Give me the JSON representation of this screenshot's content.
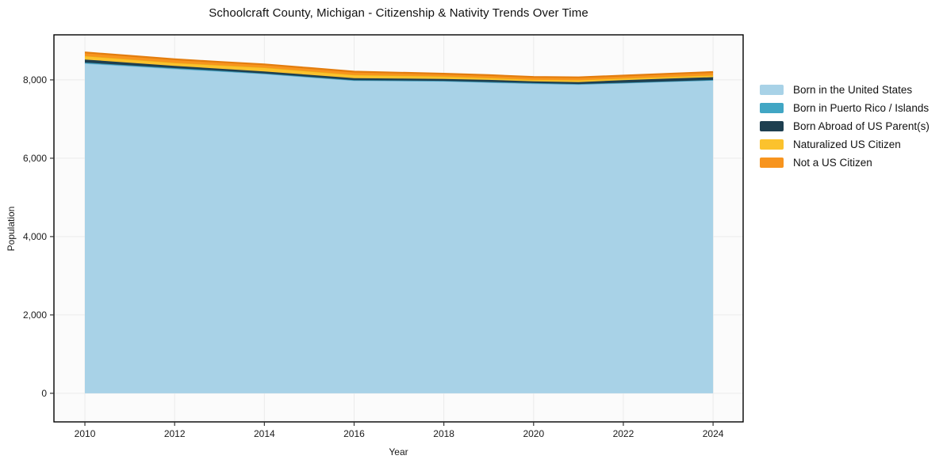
{
  "title": "Schoolcraft County, Michigan - Citizenship & Nativity Trends Over Time",
  "chart_data": {
    "type": "area",
    "stacked": true,
    "title": "Schoolcraft County, Michigan - Citizenship & Nativity Trends Over Time",
    "xlabel": "Year",
    "ylabel": "Population",
    "grid": true,
    "legend_position": "right-outside",
    "xlim": [
      2009.31,
      2024.67
    ],
    "ylim": [
      -730,
      9150
    ],
    "x": [
      2010,
      2011,
      2012,
      2013,
      2014,
      2015,
      2016,
      2017,
      2018,
      2019,
      2020,
      2021,
      2022,
      2023,
      2024
    ],
    "x_ticks": [
      {
        "value": 2010,
        "label": "2010"
      },
      {
        "value": 2012,
        "label": "2012"
      },
      {
        "value": 2014,
        "label": "2014"
      },
      {
        "value": 2016,
        "label": "2016"
      },
      {
        "value": 2018,
        "label": "2018"
      },
      {
        "value": 2020,
        "label": "2020"
      },
      {
        "value": 2022,
        "label": "2022"
      },
      {
        "value": 2024,
        "label": "2024"
      }
    ],
    "y_ticks": [
      {
        "value": 0,
        "label": "0"
      },
      {
        "value": 2000,
        "label": "2,000"
      },
      {
        "value": 4000,
        "label": "4,000"
      },
      {
        "value": 6000,
        "label": "6,000"
      },
      {
        "value": 8000,
        "label": "8,000"
      }
    ],
    "series": [
      {
        "name": "Born in the United States",
        "color": "#a8d2e7",
        "edge": "#7db8d6",
        "values": [
          8423,
          8353,
          8283,
          8219,
          8155,
          8070,
          7985,
          7976,
          7966,
          7936,
          7905,
          7886,
          7919,
          7957,
          7994
        ]
      },
      {
        "name": "Born in Puerto Rico / Islands",
        "color": "#41a6c4",
        "edge": "#3694b1",
        "values": [
          20,
          20,
          19,
          15,
          10,
          10,
          10,
          10,
          10,
          12,
          15,
          10,
          8,
          6,
          5
        ]
      },
      {
        "name": "Born Abroad of US Parent(s)",
        "color": "#1e3f50",
        "edge": "#1e3f50",
        "values": [
          76,
          66,
          55,
          52,
          50,
          49,
          48,
          48,
          48,
          52,
          45,
          48,
          67,
          69,
          71
        ]
      },
      {
        "name": "Naturalized US Citizen",
        "color": "#fbc22d",
        "edge": "#eead17",
        "values": [
          93,
          87,
          81,
          90,
          100,
          94,
          87,
          77,
          67,
          54,
          41,
          53,
          48,
          49,
          50
        ]
      },
      {
        "name": "Not a US Citizen",
        "color": "#f7941e",
        "edge": "#e37d0e",
        "values": [
          89,
          88,
          87,
          84,
          81,
          81,
          81,
          74,
          67,
          68,
          69,
          68,
          67,
          74,
          81
        ]
      }
    ]
  }
}
